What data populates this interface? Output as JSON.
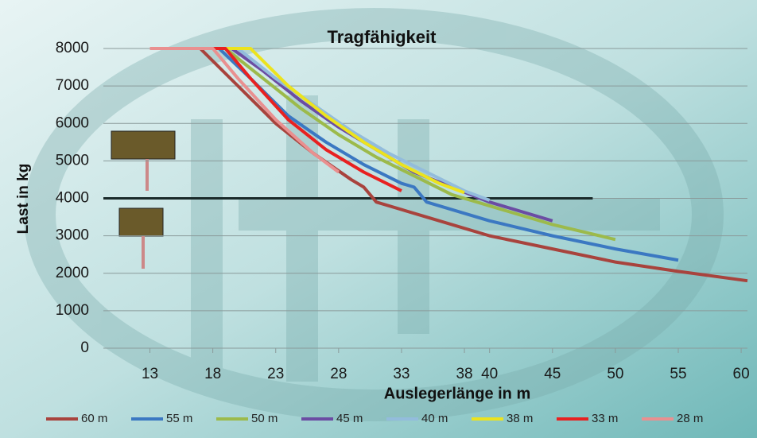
{
  "chart_data": {
    "type": "line",
    "title": "Tragfähigkeit",
    "x_label": "Auslegerlänge in m",
    "y_label": "Last in kg",
    "xlim": [
      9.3,
      60.5
    ],
    "xticks": [
      13,
      18,
      23,
      28,
      33,
      38,
      40,
      45,
      50,
      55,
      60
    ],
    "ylim": [
      0,
      8000
    ],
    "yticks": [
      0,
      1000,
      2000,
      3000,
      4000,
      5000,
      6000,
      7000,
      8000
    ],
    "grid": true,
    "reference_line": {
      "y": 4000,
      "x": [
        9.3,
        48.2
      ],
      "color": "#1a2a2a"
    },
    "series": [
      {
        "name": "60 m",
        "color": "#a8433d",
        "x": [
          17,
          20,
          23,
          26,
          29,
          30,
          31,
          35,
          40,
          45,
          50,
          55,
          60.5
        ],
        "values": [
          8000,
          7000,
          6000,
          5200,
          4500,
          4300,
          3900,
          3500,
          3000,
          2650,
          2300,
          2050,
          1800
        ]
      },
      {
        "name": "55 m",
        "color": "#3b78c2",
        "x": [
          18.5,
          21,
          24,
          27,
          30,
          33,
          34,
          35,
          40,
          45,
          50,
          55
        ],
        "values": [
          8000,
          7200,
          6200,
          5500,
          4900,
          4400,
          4300,
          3900,
          3400,
          3000,
          2650,
          2350
        ]
      },
      {
        "name": "50 m",
        "color": "#9cba4b",
        "x": [
          19,
          22,
          25,
          28,
          31,
          34,
          37,
          40,
          45,
          50
        ],
        "values": [
          8000,
          7200,
          6400,
          5700,
          5100,
          4600,
          4100,
          3800,
          3300,
          2900
        ]
      },
      {
        "name": "45 m",
        "color": "#6b4ca3",
        "x": [
          19.5,
          22,
          25,
          28,
          31,
          34,
          37,
          40,
          45
        ],
        "values": [
          8000,
          7400,
          6600,
          5900,
          5300,
          4700,
          4300,
          3900,
          3400
        ]
      },
      {
        "name": "40 m",
        "color": "#93bcdc",
        "x": [
          20,
          23,
          26,
          29,
          32,
          35,
          38,
          40
        ],
        "values": [
          8000,
          7200,
          6500,
          5800,
          5200,
          4700,
          4200,
          3950
        ]
      },
      {
        "name": "38 m",
        "color": "#ece31e",
        "x": [
          18,
          21,
          24,
          27,
          30,
          33,
          36,
          38
        ],
        "values": [
          8000,
          8000,
          7000,
          6200,
          5500,
          4900,
          4400,
          4150
        ]
      },
      {
        "name": "33 m",
        "color": "#e82121",
        "x": [
          17,
          19,
          21,
          24,
          27,
          30,
          33
        ],
        "values": [
          8000,
          8000,
          7200,
          6100,
          5300,
          4700,
          4200
        ]
      },
      {
        "name": "28 m",
        "color": "#e99090",
        "x": [
          13,
          18,
          20,
          23,
          26,
          28
        ],
        "values": [
          8000,
          8000,
          7200,
          6100,
          5200,
          4700
        ]
      }
    ]
  }
}
